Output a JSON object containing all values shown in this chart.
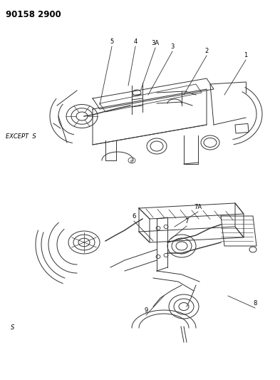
{
  "background_color": "#ffffff",
  "part_number": "90158 2900",
  "top_label": "EXCEPT  S",
  "bottom_label": "S",
  "figsize": [
    3.93,
    5.33
  ],
  "dpi": 100,
  "top_callout_numbers": [
    "5",
    "4",
    "3A",
    "3",
    "2",
    "1"
  ],
  "bottom_callout_numbers": [
    "6",
    "7A",
    "7",
    "9",
    "8"
  ],
  "line_color": "#333333",
  "text_color": "#000000"
}
